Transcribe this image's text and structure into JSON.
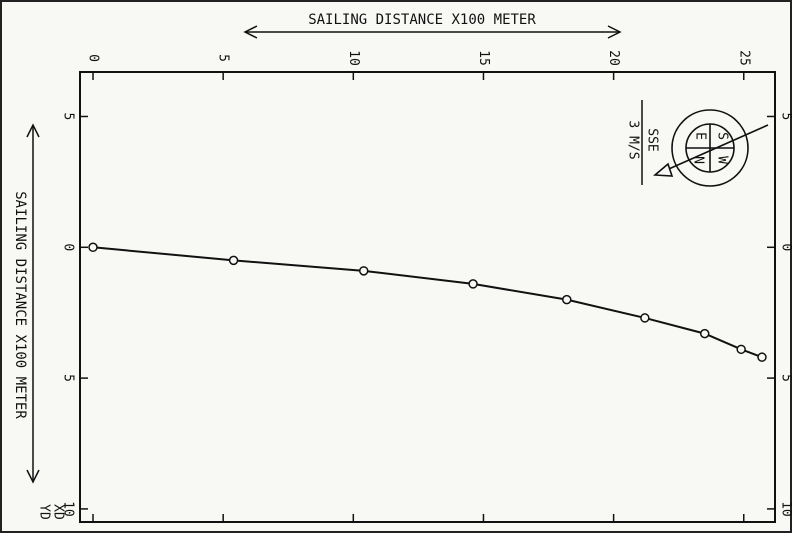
{
  "chart_data": {
    "type": "line",
    "x_label": "SAILING DISTANCE X100 METER",
    "y_label": "SAILING DISTANCE X100 METER",
    "corner_labels": [
      "XD",
      "YD"
    ],
    "wind_direction": "SSE",
    "wind_speed": "3 M/S",
    "compass_labels": [
      "E",
      "S",
      "N",
      "W"
    ],
    "x": [
      0,
      5.4,
      10.4,
      14.6,
      18.2,
      21.2,
      23.5,
      24.9,
      25.7
    ],
    "values": [
      0,
      0.5,
      0.9,
      1.4,
      2.0,
      2.7,
      3.3,
      3.9,
      4.2
    ],
    "color": "#111111",
    "xlim": [
      -0.5,
      26.2
    ],
    "xticks": [
      0,
      5,
      10,
      15,
      20,
      25
    ],
    "ylim": [
      -6.7,
      10.5
    ],
    "yticks": [
      {
        "value": -5,
        "label": "5"
      },
      0,
      5,
      10
    ]
  }
}
